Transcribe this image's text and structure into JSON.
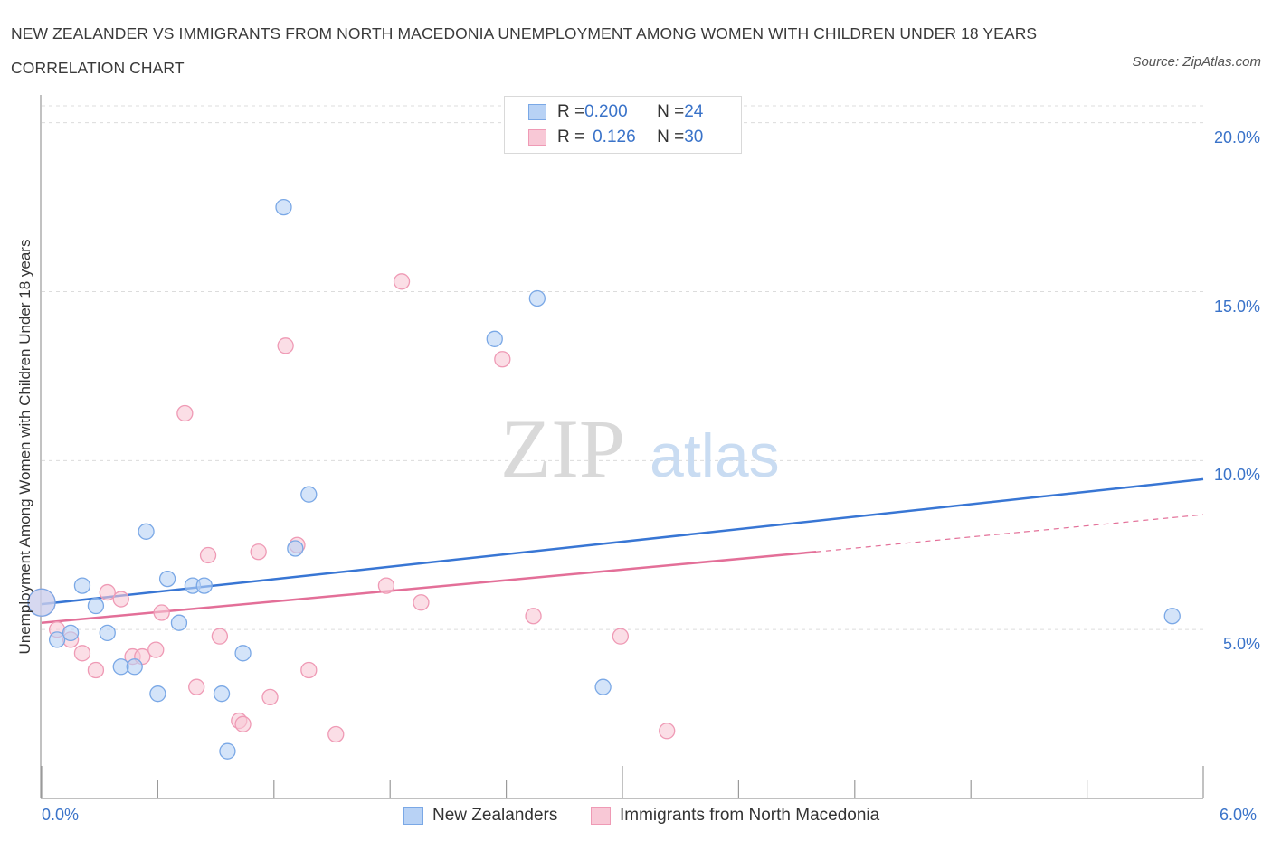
{
  "title": "NEW ZEALANDER VS IMMIGRANTS FROM NORTH MACEDONIA UNEMPLOYMENT AMONG WOMEN WITH CHILDREN UNDER 18 YEARS CORRELATION CHART",
  "source": "Source: ZipAtlas.com",
  "watermark": {
    "zip": "ZIP",
    "atlas": "atlas"
  },
  "legend": {
    "rows": [
      {
        "r_label": "R = ",
        "r_value": "0.200",
        "n_label": "N = ",
        "n_value": "24"
      },
      {
        "r_label": "R = ",
        "r_value": "0.126",
        "n_label": "N = ",
        "n_value": "30"
      }
    ]
  },
  "bottom_legend": [
    "New Zealanders",
    "Immigrants from North Macedonia"
  ],
  "colors": {
    "blue_fill": "#b8d2f5",
    "blue_stroke": "#7aa8e6",
    "blue_line": "#3876d4",
    "pink_fill": "#f8c8d6",
    "pink_stroke": "#ef9ab5",
    "pink_line": "#e36f98",
    "axis_text": "#3a73c9",
    "grid": "#dcdcdc"
  },
  "chart_data": {
    "type": "scatter",
    "title": "NEW ZEALANDER VS IMMIGRANTS FROM NORTH MACEDONIA UNEMPLOYMENT AMONG WOMEN WITH CHILDREN UNDER 18 YEARS CORRELATION CHART",
    "xlabel": "",
    "ylabel": "Unemployment Among Women with Children Under 18 years",
    "xlim": [
      0,
      6
    ],
    "ylim": [
      0,
      20.5
    ],
    "x_tick_labels": [
      "0.0%",
      "6.0%"
    ],
    "y_ticks": [
      5,
      10,
      15,
      20
    ],
    "y_tick_labels": [
      "5.0%",
      "10.0%",
      "15.0%",
      "20.0%"
    ],
    "grid": true,
    "legend_position": "top-center",
    "series": [
      {
        "name": "New Zealanders",
        "color": "#7aa8e6",
        "points": [
          [
            0.0,
            5.8
          ],
          [
            0.08,
            4.7
          ],
          [
            0.15,
            4.9
          ],
          [
            0.21,
            6.3
          ],
          [
            0.28,
            5.7
          ],
          [
            0.34,
            4.9
          ],
          [
            0.41,
            3.9
          ],
          [
            0.48,
            3.9
          ],
          [
            0.54,
            7.9
          ],
          [
            0.6,
            3.1
          ],
          [
            0.65,
            6.5
          ],
          [
            0.71,
            5.2
          ],
          [
            0.78,
            6.3
          ],
          [
            0.84,
            6.3
          ],
          [
            0.93,
            3.1
          ],
          [
            0.96,
            1.4
          ],
          [
            1.04,
            4.3
          ],
          [
            1.25,
            17.5
          ],
          [
            1.31,
            7.4
          ],
          [
            1.38,
            9.0
          ],
          [
            2.34,
            13.6
          ],
          [
            2.56,
            14.8
          ],
          [
            2.9,
            3.3
          ],
          [
            5.84,
            5.4
          ]
        ],
        "trend": [
          [
            0.0,
            5.75
          ],
          [
            6.0,
            9.45
          ]
        ]
      },
      {
        "name": "Immigrants from North Macedonia",
        "color": "#ef9ab5",
        "points": [
          [
            0.0,
            5.8
          ],
          [
            0.08,
            5.0
          ],
          [
            0.15,
            4.7
          ],
          [
            0.21,
            4.3
          ],
          [
            0.28,
            3.8
          ],
          [
            0.34,
            6.1
          ],
          [
            0.41,
            5.9
          ],
          [
            0.47,
            4.2
          ],
          [
            0.52,
            4.2
          ],
          [
            0.59,
            4.4
          ],
          [
            0.62,
            5.5
          ],
          [
            0.74,
            11.4
          ],
          [
            0.8,
            3.3
          ],
          [
            0.86,
            7.2
          ],
          [
            0.92,
            4.8
          ],
          [
            1.02,
            2.3
          ],
          [
            1.04,
            2.2
          ],
          [
            1.12,
            7.3
          ],
          [
            1.18,
            3.0
          ],
          [
            1.26,
            13.4
          ],
          [
            1.32,
            7.5
          ],
          [
            1.38,
            3.8
          ],
          [
            1.52,
            1.9
          ],
          [
            1.78,
            6.3
          ],
          [
            1.86,
            15.3
          ],
          [
            1.96,
            5.8
          ],
          [
            2.38,
            13.0
          ],
          [
            2.54,
            5.4
          ],
          [
            2.99,
            4.8
          ],
          [
            3.23,
            2.0
          ]
        ],
        "trend": [
          [
            0.0,
            5.2
          ],
          [
            4.0,
            7.3
          ]
        ],
        "trend_extension": [
          [
            4.0,
            7.3
          ],
          [
            6.0,
            8.4
          ]
        ]
      }
    ]
  }
}
